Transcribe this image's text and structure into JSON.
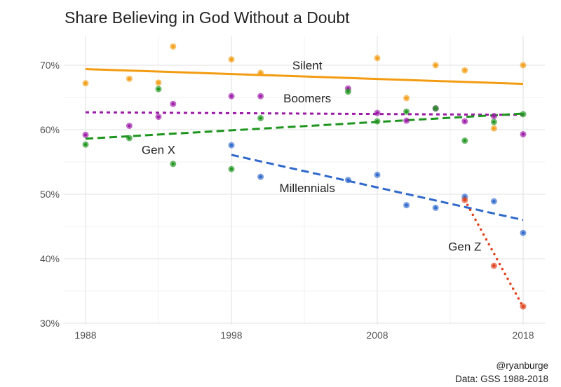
{
  "chart_data": {
    "type": "scatter",
    "title": "Share Believing in God Without a Doubt",
    "xlabel": "",
    "ylabel": "",
    "xlim": [
      1986.5,
      2019.5
    ],
    "ylim": [
      29.8,
      74.5
    ],
    "x_ticks": [
      1988,
      1998,
      2008,
      2018
    ],
    "x_tick_labels": [
      "1988",
      "1998",
      "2008",
      "2018"
    ],
    "y_ticks": [
      30,
      40,
      50,
      60,
      70
    ],
    "y_tick_labels": [
      "30%",
      "40%",
      "50%",
      "60%",
      "70%"
    ],
    "grid": true,
    "legend": "none (direct labels)",
    "series": [
      {
        "name": "Silent",
        "color": "#f39c12",
        "line_style": "solid",
        "x": [
          1988,
          1991,
          1993,
          1994,
          1998,
          2000,
          2008,
          2010,
          2012,
          2014,
          2016,
          2018
        ],
        "y": [
          67.2,
          67.9,
          67.3,
          72.9,
          70.9,
          68.8,
          71.1,
          64.9,
          70.0,
          69.2,
          60.2,
          70.0
        ],
        "trend": {
          "x": [
            1988,
            2018
          ],
          "y": [
            69.4,
            67.1
          ]
        }
      },
      {
        "name": "Boomers",
        "color": "#9c1aa8",
        "line_style": "dotted",
        "x": [
          1988,
          1991,
          1993,
          1994,
          1998,
          2000,
          2006,
          2008,
          2010,
          2012,
          2014,
          2016,
          2018
        ],
        "y": [
          59.2,
          60.6,
          62.0,
          64.0,
          65.2,
          65.2,
          66.4,
          62.6,
          61.4,
          63.3,
          61.3,
          62.1,
          59.3
        ],
        "trend": {
          "x": [
            1988,
            2018
          ],
          "y": [
            62.7,
            62.3
          ]
        }
      },
      {
        "name": "Gen X",
        "color": "#1d941d",
        "line_style": "dashed",
        "x": [
          1988,
          1991,
          1993,
          1994,
          1998,
          2000,
          2006,
          2008,
          2010,
          2012,
          2014,
          2016,
          2018
        ],
        "y": [
          57.7,
          58.7,
          66.3,
          54.7,
          53.9,
          61.8,
          65.9,
          61.3,
          62.8,
          63.3,
          58.3,
          61.2,
          62.4
        ],
        "trend": {
          "x": [
            1988,
            2018
          ],
          "y": [
            58.6,
            62.5
          ]
        }
      },
      {
        "name": "Millennials",
        "color": "#2f68cc",
        "line_style": "dashed",
        "x": [
          1998,
          2000,
          2006,
          2008,
          2010,
          2012,
          2014,
          2016,
          2018
        ],
        "y": [
          57.6,
          52.7,
          52.2,
          53.0,
          48.3,
          47.9,
          49.6,
          48.9,
          44.0
        ],
        "trend": {
          "x": [
            1998,
            2018
          ],
          "y": [
            56.1,
            46.0
          ]
        }
      },
      {
        "name": "Gen Z",
        "color": "#e0401a",
        "line_style": "dotted",
        "x": [
          2014,
          2016,
          2018
        ],
        "y": [
          49.1,
          38.9,
          32.6
        ],
        "trend": {
          "x": [
            2014,
            2018
          ],
          "y": [
            49.1,
            32.5
          ]
        }
      }
    ],
    "series_labels": [
      {
        "text": "Silent",
        "x": 2003.2,
        "y": 70.0
      },
      {
        "text": "Boomers",
        "x": 2003.2,
        "y": 64.9
      },
      {
        "text": "Gen X",
        "x": 1993.0,
        "y": 56.9
      },
      {
        "text": "Millennials",
        "x": 2003.2,
        "y": 51.0
      },
      {
        "text": "Gen Z",
        "x": 2014.0,
        "y": 41.9
      }
    ]
  },
  "credits": {
    "author": "@ryanburge",
    "source": "Data: GSS 1988-2018"
  }
}
